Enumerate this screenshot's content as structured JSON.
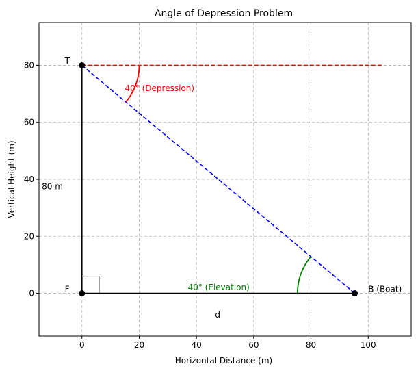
{
  "chart_data": {
    "type": "scatter",
    "title": "Angle of Depression Problem",
    "xlabel": "Horizontal Distance (m)",
    "ylabel": "Vertical Height (m)",
    "xlim": [
      -15,
      115
    ],
    "ylim": [
      -15,
      95
    ],
    "xticks": [
      0,
      20,
      40,
      60,
      80,
      100
    ],
    "yticks": [
      0,
      20,
      40,
      60,
      80
    ],
    "grid": true,
    "points": [
      {
        "name": "T",
        "x": 0,
        "y": 80
      },
      {
        "name": "F",
        "x": 0,
        "y": 0
      },
      {
        "name": "B (Boat)",
        "x": 95.3,
        "y": 0
      }
    ],
    "lines": [
      {
        "name": "tower",
        "x": [
          0,
          0
        ],
        "y": [
          0,
          80
        ],
        "color": "#000000",
        "style": "solid"
      },
      {
        "name": "ground",
        "x": [
          0,
          95.3
        ],
        "y": [
          0,
          0
        ],
        "color": "#000000",
        "style": "solid"
      },
      {
        "name": "line-of-sight",
        "x": [
          0,
          95.3
        ],
        "y": [
          80,
          0
        ],
        "color": "#0000ff",
        "style": "dashed"
      },
      {
        "name": "horizontal",
        "x": [
          0,
          105
        ],
        "y": [
          80,
          80
        ],
        "color": "#ff0000",
        "style": "dashed"
      }
    ],
    "right_angle_marker": {
      "x": 0,
      "y": 0,
      "size": 6
    },
    "arcs": [
      {
        "name": "depression-arc",
        "center_x": 0,
        "center_y": 80,
        "radius": 20,
        "from_deg": -40,
        "to_deg": 0,
        "color": "#ff0000"
      },
      {
        "name": "elevation-arc",
        "center_x": 95.3,
        "center_y": 0,
        "radius": 20,
        "from_deg": 140,
        "to_deg": 180,
        "color": "#008000"
      }
    ],
    "annotations": [
      {
        "name": "depression-label",
        "text": "40° (Depression)",
        "x": 15,
        "y": 72,
        "color": "#ff0000"
      },
      {
        "name": "elevation-label",
        "text": "40° (Elevation)",
        "x": 37,
        "y": 2,
        "color": "#008000"
      },
      {
        "name": "height-label",
        "text": "80 m",
        "x": -14,
        "y": 37.5,
        "color": "#000000"
      },
      {
        "name": "distance-label",
        "text": "d",
        "x": 46.5,
        "y": -7.5,
        "color": "#000000"
      },
      {
        "name": "label-T",
        "text": "T",
        "x": -6,
        "y": 81.5,
        "color": "#000000"
      },
      {
        "name": "label-F",
        "text": "F",
        "x": -6,
        "y": 1.5,
        "color": "#000000"
      },
      {
        "name": "label-B",
        "text": "B (Boat)",
        "x": 100,
        "y": 1.5,
        "color": "#000000"
      }
    ]
  }
}
